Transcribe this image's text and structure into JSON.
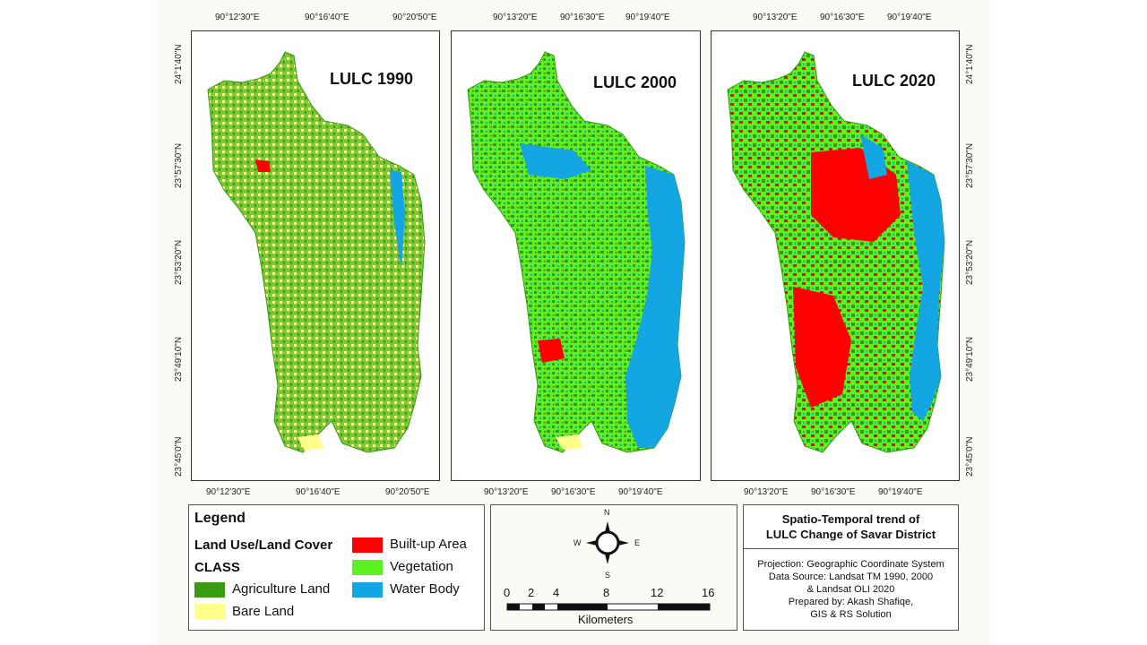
{
  "maps": [
    {
      "title": "LULC 1990",
      "top_ticks": [
        "90°12'30\"E",
        "90°16'40\"E",
        "90°20'50\"E"
      ],
      "bottom_ticks": [
        "90°12'30\"E",
        "90°16'40\"E",
        "90°20'50\"E"
      ],
      "left_ticks": [
        "24°1'40\"N",
        "23°57'30\"N",
        "23°53'20\"N",
        "23°49'10\"N",
        "23°45'0\"N"
      ],
      "dominant_class": "Agriculture Land"
    },
    {
      "title": "LULC 2000",
      "top_ticks": [
        "90°13'20\"E",
        "90°16'30\"E",
        "90°19'40\"E"
      ],
      "bottom_ticks": [
        "90°13'20\"E",
        "90°16'30\"E",
        "90°19'40\"E"
      ],
      "dominant_class": "Vegetation"
    },
    {
      "title": "LULC 2020",
      "top_ticks": [
        "90°13'20\"E",
        "90°16'30\"E",
        "90°19'40\"E"
      ],
      "bottom_ticks": [
        "90°13'20\"E",
        "90°16'30\"E",
        "90°19'40\"E"
      ],
      "right_ticks": [
        "24°1'40\"N",
        "23°57'30\"N",
        "23°53'20\"N",
        "23°49'10\"N",
        "23°45'0\"N"
      ],
      "dominant_class": "Built-up Area"
    }
  ],
  "legend": {
    "title": "Legend",
    "subtitle": "Land Use/Land Cover",
    "class_label": "CLASS",
    "items": [
      {
        "label": "Agriculture Land",
        "color": "#3a9a14"
      },
      {
        "label": "Bare Land",
        "color": "#ffff8a"
      },
      {
        "label": "Built-up Area",
        "color": "#ff0000"
      },
      {
        "label": "Vegetation",
        "color": "#5cf222"
      },
      {
        "label": "Water Body",
        "color": "#14a5e3"
      }
    ]
  },
  "compass": {
    "n": "N",
    "s": "S",
    "e": "E",
    "w": "W"
  },
  "scale_bar": {
    "ticks": [
      "0",
      "2",
      "4",
      "8",
      "12",
      "16"
    ],
    "unit": "Kilometers"
  },
  "info": {
    "title_line1": "Spatio-Temporal trend of",
    "title_line2": "LULC  Change of Savar District",
    "line1": "Projection: Geographic Coordinate System",
    "line2": "Data Source: Landsat TM 1990, 2000",
    "line3": "& Landsat OLI 2020",
    "line4": "Prepared by: Akash Shafiqe,",
    "line5": "GIS & RS Solution"
  }
}
